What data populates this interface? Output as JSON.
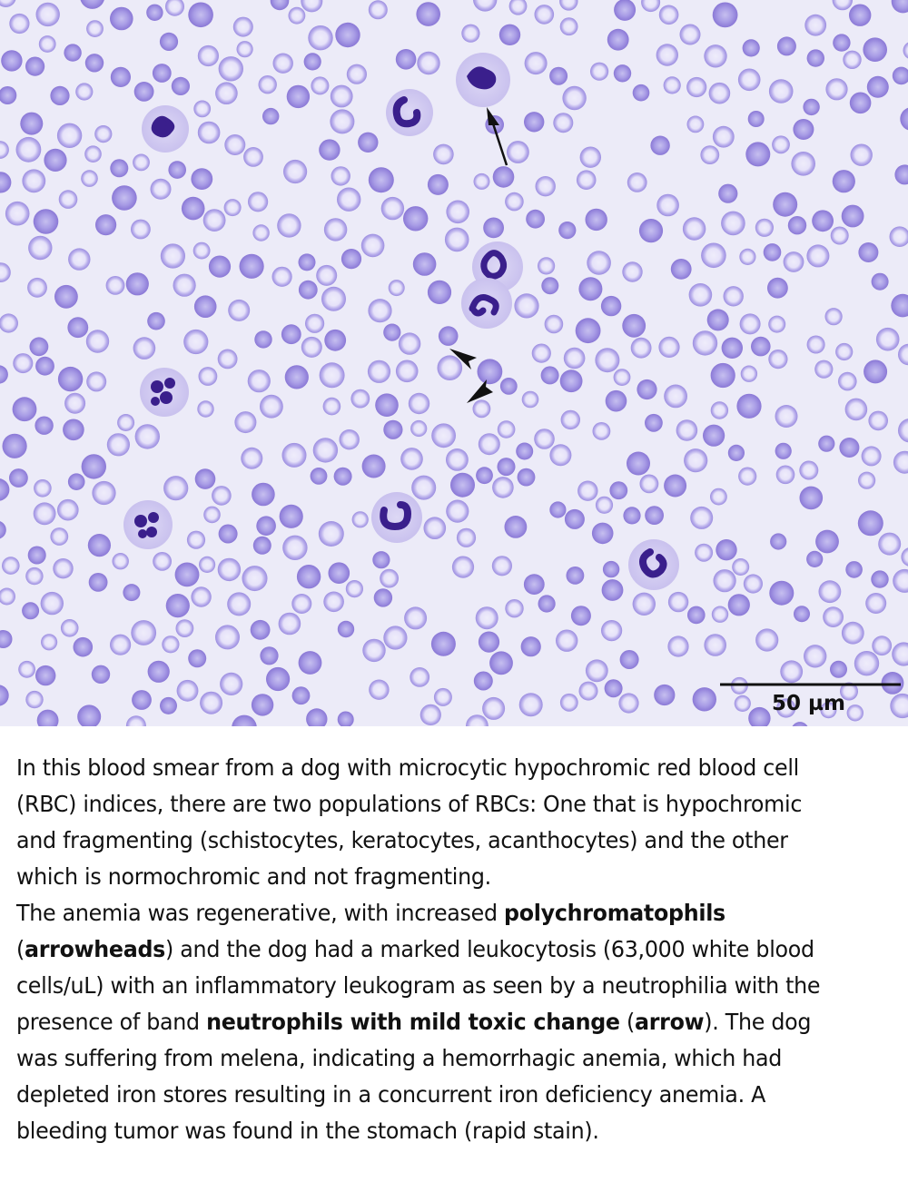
{
  "image": {
    "subject": "canine blood smear",
    "scale_bar_label": "50 µm"
  },
  "caption": {
    "para1": "In this blood smear from a dog with microcytic hypochromic red blood cell (RBC) indices, there are two populations of RBCs: One that is hypochromic and fragmenting (schistocytes, keratocytes, acanthocytes) and the other which is normochromic and not fragmenting.",
    "para2_a": "The anemia was regenerative, with increased ",
    "para2_b": "polychromatophils",
    "para2_c": " (",
    "para2_d": "arrowheads",
    "para2_e": ") and the dog had a marked leukocytosis (63,000 white blood cells/uL) with an inflammatory leukogram as seen by a neutrophilia with the presence of band ",
    "para2_f": "neutrophils with mild toxic change",
    "para2_g": " (",
    "para2_h": "arrow",
    "para2_i": "). The dog was suffering from melena, indicating a hemorrhagic anemia, which had depleted iron stores resulting in a concurrent iron deficiency anemia. A bleeding tumor was found in the stomach (rapid stain)."
  },
  "colors": {
    "background": "#ecebf8",
    "rbc_fill": "#c9c3ef",
    "rbc_rim": "#8f7fd8",
    "nucleus": "#3a1f8c"
  }
}
